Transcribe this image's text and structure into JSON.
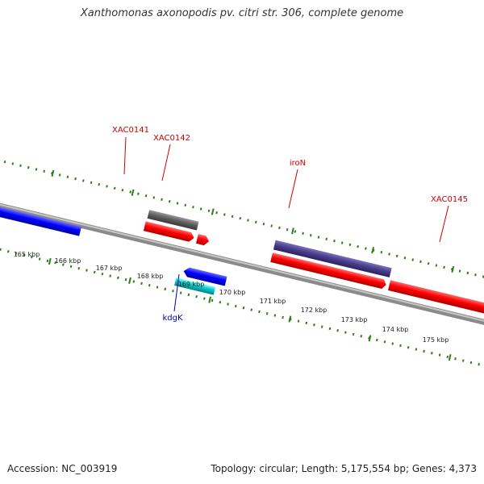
{
  "title": "Xanthomonas axonopodis pv. citri str. 306, complete genome",
  "footer": {
    "accession": "Accession: NC_003919",
    "summary": "Topology: circular; Length: 5,175,554 bp; Genes: 4,373"
  },
  "scale": {
    "unit": "kbp",
    "tick_labels": [
      "165 kbp",
      "166 kbp",
      "167 kbp",
      "168 kbp",
      "169 kbp",
      "170 kbp",
      "171 kbp",
      "172 kbp",
      "173 kbp",
      "174 kbp",
      "175 kbp"
    ]
  },
  "genes": [
    {
      "label": "XAC0141",
      "label_color": "#cc0000"
    },
    {
      "label": "XAC0142",
      "label_color": "#cc0000"
    },
    {
      "label": "iroN",
      "label_color": "#cc0000"
    },
    {
      "label": "XAC0145",
      "label_color": "#cc0000"
    },
    {
      "label": "kdgK",
      "label_color": "#0000aa"
    }
  ],
  "colors": {
    "gene_forward": "#ff0000",
    "gene_reverse": "#0000ff",
    "gene_grey": "#606060",
    "gene_purple": "#4a3f8c",
    "gene_cyan": "#00c8c8",
    "backbone": "#888888",
    "ticks": "#2e7d1a"
  }
}
